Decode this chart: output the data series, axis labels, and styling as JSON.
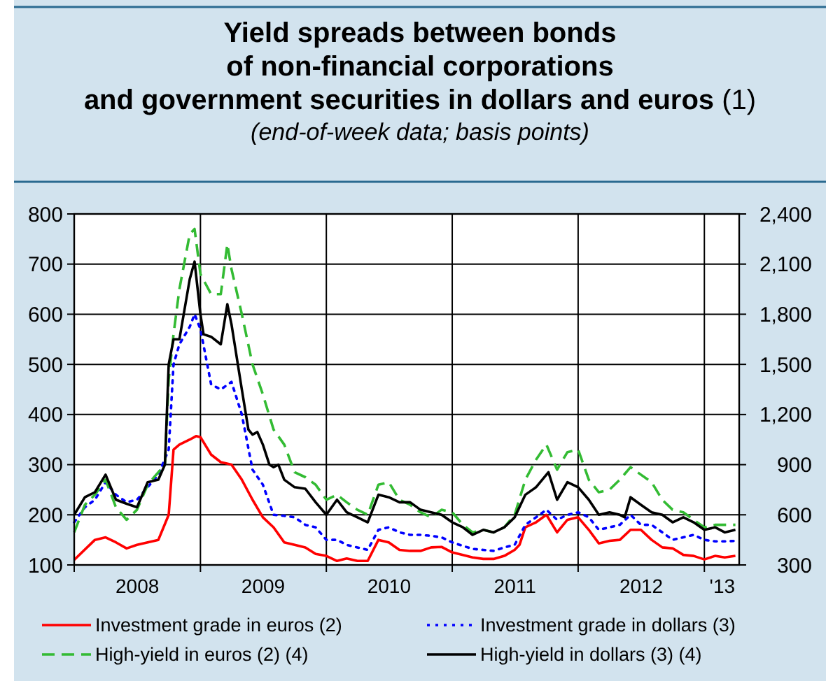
{
  "chart_data": {
    "type": "line",
    "title": "Yield spreads between bonds\nof non-financial corporations\nand government securities in dollars and euros (1)",
    "subtitle": "(end-of-week data; basis points)",
    "xlim": [
      "2008-01-01",
      "2013-04-12"
    ],
    "xticks": [
      {
        "value": "2008-01-01",
        "label": null
      },
      {
        "value": "2008-07-02",
        "label": "2008"
      },
      {
        "value": "2009-01-01",
        "label": null
      },
      {
        "value": "2009-07-02",
        "label": "2009"
      },
      {
        "value": "2010-01-01",
        "label": null
      },
      {
        "value": "2010-07-02",
        "label": "2010"
      },
      {
        "value": "2011-01-01",
        "label": null
      },
      {
        "value": "2011-07-02",
        "label": "2011"
      },
      {
        "value": "2012-01-01",
        "label": null
      },
      {
        "value": "2012-07-02",
        "label": "2012"
      },
      {
        "value": "2013-01-01",
        "label": null
      },
      {
        "value": "2013-02-22",
        "label": "'13"
      }
    ],
    "ylim": [
      100,
      800
    ],
    "yticks": [
      100,
      200,
      300,
      400,
      500,
      600,
      700,
      800
    ],
    "y2lim": [
      300,
      2400
    ],
    "y2ticks": [
      300,
      600,
      900,
      {
        "value": 1200,
        "label": "1,200"
      },
      {
        "value": 1500,
        "label": "1,500"
      },
      {
        "value": 1800,
        "label": "1,800"
      },
      {
        "value": 2100,
        "label": "2,100"
      },
      {
        "value": 2400,
        "label": "2,400"
      }
    ],
    "grid": true,
    "legend": "bottom",
    "series": [
      {
        "name": "Investment grade in euros (2)",
        "color": "#ff0000",
        "line_style": "solid",
        "x": [
          "2008-01-01",
          "2008-03-01",
          "2008-04-01",
          "2008-05-01",
          "2008-06-01",
          "2008-07-01",
          "2008-08-01",
          "2008-09-01",
          "2008-10-01",
          "2008-10-15",
          "2008-11-01",
          "2008-12-01",
          "2008-12-20",
          "2009-01-01",
          "2009-02-01",
          "2009-03-01",
          "2009-04-01",
          "2009-05-01",
          "2009-06-01",
          "2009-07-01",
          "2009-08-01",
          "2009-09-01",
          "2009-10-01",
          "2009-11-01",
          "2009-12-01",
          "2010-01-01",
          "2010-02-01",
          "2010-03-01",
          "2010-04-01",
          "2010-05-01",
          "2010-06-01",
          "2010-07-01",
          "2010-08-01",
          "2010-09-01",
          "2010-10-01",
          "2010-11-01",
          "2010-12-01",
          "2011-01-01",
          "2011-02-01",
          "2011-03-01",
          "2011-04-01",
          "2011-05-01",
          "2011-06-01",
          "2011-07-01",
          "2011-07-15",
          "2011-08-01",
          "2011-09-01",
          "2011-10-01",
          "2011-11-01",
          "2011-12-01",
          "2012-01-01",
          "2012-02-01",
          "2012-03-01",
          "2012-04-01",
          "2012-05-01",
          "2012-06-01",
          "2012-07-01",
          "2012-08-01",
          "2012-09-01",
          "2012-10-01",
          "2012-11-01",
          "2012-12-01",
          "2013-01-01",
          "2013-02-01",
          "2013-03-01",
          "2013-04-01"
        ],
        "values": [
          110,
          150,
          155,
          145,
          133,
          140,
          145,
          150,
          200,
          330,
          340,
          350,
          357,
          355,
          320,
          305,
          300,
          270,
          230,
          195,
          175,
          145,
          140,
          135,
          122,
          118,
          108,
          113,
          108,
          108,
          150,
          145,
          130,
          128,
          128,
          135,
          136,
          125,
          120,
          115,
          112,
          112,
          118,
          130,
          140,
          175,
          185,
          200,
          165,
          190,
          195,
          170,
          143,
          148,
          150,
          170,
          170,
          150,
          135,
          133,
          120,
          118,
          111,
          118,
          115,
          118
        ]
      },
      {
        "name": "Investment grade in dollars (3)",
        "color": "#0000ff",
        "line_style": "dotted",
        "x": [
          "2008-01-01",
          "2008-02-01",
          "2008-03-01",
          "2008-04-01",
          "2008-05-01",
          "2008-06-01",
          "2008-07-01",
          "2008-08-01",
          "2008-09-01",
          "2008-10-01",
          "2008-10-15",
          "2008-11-01",
          "2008-12-01",
          "2008-12-15",
          "2009-01-01",
          "2009-02-01",
          "2009-03-01",
          "2009-04-01",
          "2009-05-01",
          "2009-06-01",
          "2009-07-01",
          "2009-08-01",
          "2009-09-01",
          "2009-10-01",
          "2009-11-01",
          "2009-12-01",
          "2010-01-01",
          "2010-02-01",
          "2010-03-01",
          "2010-04-01",
          "2010-05-01",
          "2010-06-01",
          "2010-07-01",
          "2010-08-01",
          "2010-09-01",
          "2010-10-01",
          "2010-11-01",
          "2010-12-01",
          "2011-01-01",
          "2011-02-01",
          "2011-03-01",
          "2011-04-01",
          "2011-05-01",
          "2011-06-01",
          "2011-07-01",
          "2011-08-01",
          "2011-09-01",
          "2011-10-01",
          "2011-11-01",
          "2011-12-01",
          "2012-01-01",
          "2012-02-01",
          "2012-03-01",
          "2012-04-01",
          "2012-05-01",
          "2012-06-01",
          "2012-07-01",
          "2012-08-01",
          "2012-09-01",
          "2012-10-01",
          "2012-11-01",
          "2012-12-01",
          "2013-01-01",
          "2013-02-01",
          "2013-03-01",
          "2013-04-01"
        ],
        "values": [
          185,
          215,
          230,
          265,
          240,
          225,
          230,
          255,
          280,
          330,
          500,
          540,
          575,
          600,
          570,
          460,
          450,
          465,
          400,
          290,
          260,
          200,
          198,
          195,
          180,
          175,
          150,
          150,
          140,
          135,
          130,
          170,
          175,
          165,
          160,
          160,
          158,
          155,
          145,
          138,
          132,
          130,
          128,
          135,
          140,
          180,
          195,
          210,
          190,
          200,
          205,
          195,
          170,
          175,
          180,
          200,
          180,
          180,
          165,
          150,
          155,
          160,
          150,
          147,
          147,
          148
        ]
      },
      {
        "name": "High-yield in euros (2) (4)",
        "color": "#33bb33",
        "line_style": "dashed",
        "axis": "y2",
        "x": [
          "2008-01-01",
          "2008-02-01",
          "2008-03-01",
          "2008-04-01",
          "2008-05-01",
          "2008-06-01",
          "2008-07-01",
          "2008-08-01",
          "2008-09-01",
          "2008-09-20",
          "2008-10-01",
          "2008-10-15",
          "2008-11-01",
          "2008-12-01",
          "2008-12-15",
          "2009-01-01",
          "2009-02-01",
          "2009-03-01",
          "2009-03-20",
          "2009-04-01",
          "2009-05-01",
          "2009-06-01",
          "2009-07-01",
          "2009-08-01",
          "2009-09-01",
          "2009-10-01",
          "2009-11-01",
          "2009-12-01",
          "2010-01-01",
          "2010-02-01",
          "2010-03-01",
          "2010-04-01",
          "2010-05-01",
          "2010-06-01",
          "2010-07-01",
          "2010-08-01",
          "2010-09-01",
          "2010-10-01",
          "2010-11-01",
          "2010-12-01",
          "2011-01-01",
          "2011-02-01",
          "2011-03-01",
          "2011-04-01",
          "2011-05-01",
          "2011-06-01",
          "2011-07-01",
          "2011-08-01",
          "2011-09-01",
          "2011-10-01",
          "2011-11-01",
          "2011-12-01",
          "2012-01-01",
          "2012-02-01",
          "2012-03-01",
          "2012-04-01",
          "2012-05-01",
          "2012-06-01",
          "2012-07-01",
          "2012-08-01",
          "2012-09-01",
          "2012-10-01",
          "2012-11-01",
          "2012-12-01",
          "2013-01-01",
          "2013-02-01",
          "2013-03-01",
          "2013-04-01"
        ],
        "values": [
          495,
          660,
          720,
          810,
          645,
          570,
          630,
          780,
          855,
          900,
          1410,
          1680,
          1950,
          2280,
          2310,
          2040,
          1920,
          1920,
          2220,
          2070,
          1800,
          1500,
          1320,
          1110,
          1020,
          855,
          825,
          780,
          690,
          720,
          675,
          630,
          600,
          780,
          795,
          690,
          660,
          615,
          585,
          630,
          615,
          540,
          495,
          510,
          495,
          525,
          600,
          810,
          930,
          1020,
          870,
          975,
          990,
          810,
          735,
          750,
          810,
          885,
          840,
          795,
          690,
          630,
          615,
          570,
          525,
          540,
          540,
          540
        ]
      },
      {
        "name": "High-yield in dollars (3) (4)",
        "color": "#000000",
        "line_style": "solid",
        "axis": "y2",
        "x": [
          "2008-01-01",
          "2008-02-01",
          "2008-03-01",
          "2008-04-01",
          "2008-05-01",
          "2008-06-01",
          "2008-07-01",
          "2008-08-01",
          "2008-09-01",
          "2008-09-20",
          "2008-10-01",
          "2008-10-15",
          "2008-11-01",
          "2008-12-01",
          "2008-12-15",
          "2009-01-01",
          "2009-01-10",
          "2009-02-01",
          "2009-03-01",
          "2009-03-20",
          "2009-04-01",
          "2009-05-01",
          "2009-05-20",
          "2009-06-01",
          "2009-06-15",
          "2009-07-01",
          "2009-07-20",
          "2009-08-01",
          "2009-08-15",
          "2009-09-01",
          "2009-10-01",
          "2009-11-01",
          "2009-12-01",
          "2010-01-01",
          "2010-02-01",
          "2010-03-01",
          "2010-04-01",
          "2010-05-01",
          "2010-06-01",
          "2010-07-01",
          "2010-08-01",
          "2010-09-01",
          "2010-10-01",
          "2010-11-01",
          "2010-12-01",
          "2011-01-01",
          "2011-02-01",
          "2011-03-01",
          "2011-04-01",
          "2011-05-01",
          "2011-06-01",
          "2011-07-01",
          "2011-08-01",
          "2011-09-01",
          "2011-10-07",
          "2011-11-01",
          "2011-12-01",
          "2012-01-01",
          "2012-02-01",
          "2012-03-01",
          "2012-04-01",
          "2012-05-01",
          "2012-05-15",
          "2012-06-01",
          "2012-07-01",
          "2012-08-01",
          "2012-09-01",
          "2012-10-01",
          "2012-11-01",
          "2012-12-01",
          "2013-01-01",
          "2013-02-01",
          "2013-03-01",
          "2013-04-01"
        ],
        "values": [
          600,
          705,
          735,
          840,
          690,
          666,
          645,
          795,
          810,
          900,
          1500,
          1650,
          1650,
          2010,
          2115,
          1800,
          1680,
          1665,
          1620,
          1860,
          1740,
          1350,
          1110,
          1080,
          1095,
          1020,
          900,
          885,
          900,
          810,
          765,
          756,
          675,
          600,
          690,
          615,
          585,
          555,
          720,
          705,
          675,
          675,
          630,
          615,
          600,
          555,
          525,
          480,
          510,
          495,
          525,
          585,
          720,
          765,
          855,
          690,
          795,
          765,
          690,
          600,
          615,
          600,
          585,
          705,
          660,
          615,
          600,
          555,
          585,
          555,
          510,
          525,
          495,
          510
        ]
      }
    ]
  }
}
